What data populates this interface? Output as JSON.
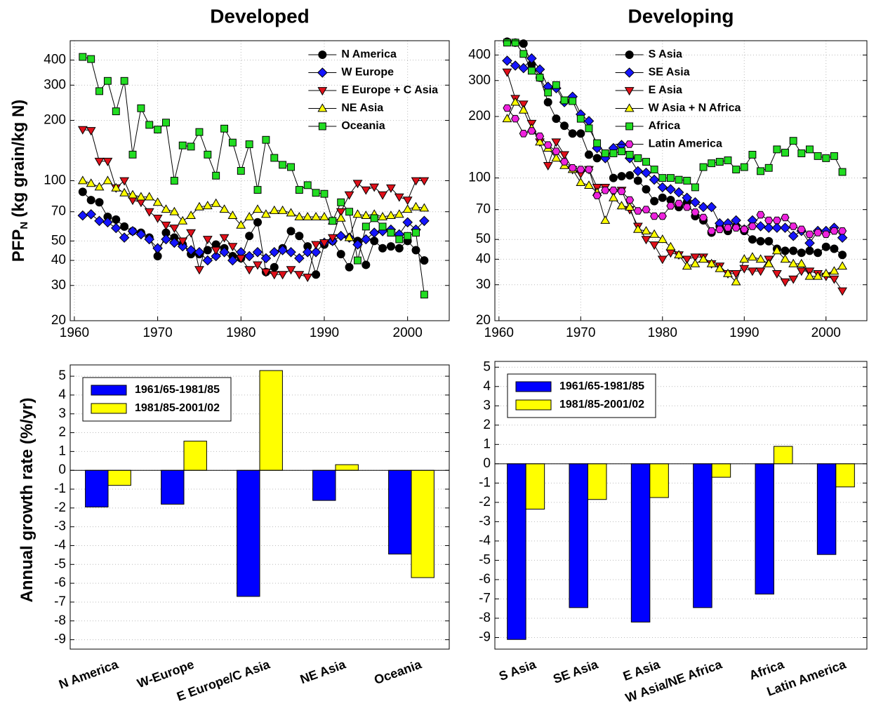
{
  "chart_data": [
    {
      "type": "line",
      "title": "Developed",
      "ylog": true,
      "ylabel": "PFP",
      "ylabel_sub": "N",
      "ylabel_unit": "(kg grain/kg N)",
      "xlim": [
        1959.5,
        2005
      ],
      "xticks": [
        1960,
        1970,
        1980,
        1990,
        2000
      ],
      "ylim": [
        20,
        500
      ],
      "yticks": [
        20,
        30,
        40,
        50,
        70,
        100,
        200,
        300,
        400
      ],
      "grid": true,
      "legend": "upper right",
      "line_color": "#000000",
      "x": [
        1961,
        1962,
        1963,
        1964,
        1965,
        1966,
        1967,
        1968,
        1969,
        1970,
        1971,
        1972,
        1973,
        1974,
        1975,
        1976,
        1977,
        1978,
        1979,
        1980,
        1981,
        1982,
        1983,
        1984,
        1985,
        1986,
        1987,
        1988,
        1989,
        1990,
        1991,
        1992,
        1993,
        1994,
        1995,
        1996,
        1997,
        1998,
        1999,
        2000,
        2001,
        2002
      ],
      "series": [
        {
          "name": "N America",
          "color": "#000000",
          "marker": "circle",
          "values": [
            88,
            80,
            78,
            66,
            64,
            59,
            56,
            55,
            52,
            42,
            55,
            52,
            48,
            43,
            43,
            45,
            48,
            46,
            42,
            41,
            53,
            62,
            35,
            37,
            46,
            56,
            53,
            47,
            34,
            48,
            50,
            43,
            37,
            50,
            38,
            50,
            46,
            47,
            46,
            50,
            45,
            40
          ]
        },
        {
          "name": "W Europe",
          "color": "#1515ff",
          "marker": "diamond",
          "values": [
            67,
            68,
            63,
            62,
            58,
            52,
            56,
            54,
            51,
            46,
            51,
            49,
            47,
            45,
            44,
            40,
            42,
            44,
            40,
            44,
            42,
            44,
            41,
            44,
            45,
            44,
            41,
            44,
            44,
            49,
            50,
            53,
            52,
            48,
            51,
            55,
            56,
            57,
            54,
            62,
            57,
            63
          ]
        },
        {
          "name": "E Europe + C Asia",
          "color": "#e0101a",
          "marker": "triangle-down",
          "values": [
            180,
            178,
            125,
            125,
            92,
            100,
            80,
            78,
            70,
            65,
            60,
            58,
            50,
            55,
            36,
            51,
            45,
            52,
            47,
            41,
            36,
            38,
            35,
            34,
            34,
            36,
            34,
            33,
            48,
            49,
            52,
            70,
            85,
            97,
            90,
            93,
            85,
            92,
            83,
            80,
            100,
            100
          ]
        },
        {
          "name": "NE Asia",
          "color": "#ffff00",
          "marker": "triangle-up",
          "values": [
            100,
            97,
            93,
            100,
            92,
            87,
            85,
            83,
            83,
            78,
            72,
            70,
            63,
            67,
            74,
            75,
            77,
            72,
            67,
            60,
            66,
            72,
            68,
            71,
            71,
            69,
            66,
            66,
            66,
            66,
            63,
            65,
            52,
            68,
            67,
            68,
            66,
            67,
            68,
            72,
            74,
            73
          ]
        },
        {
          "name": "Oceania",
          "color": "#22dd22",
          "marker": "square",
          "values": [
            415,
            405,
            280,
            315,
            222,
            315,
            135,
            230,
            190,
            180,
            195,
            100,
            150,
            148,
            175,
            135,
            106,
            182,
            155,
            112,
            152,
            90,
            160,
            130,
            120,
            117,
            90,
            95,
            87,
            86,
            63,
            78,
            70,
            40,
            59,
            65,
            59,
            55,
            51,
            53,
            55,
            27
          ]
        }
      ]
    },
    {
      "type": "line",
      "title": "Developing",
      "ylog": true,
      "xlim": [
        1959.5,
        2005
      ],
      "xticks": [
        1960,
        1970,
        1980,
        1990,
        2000
      ],
      "ylim": [
        20,
        470
      ],
      "yticks": [
        20,
        30,
        40,
        50,
        70,
        100,
        200,
        300,
        400
      ],
      "grid": true,
      "legend": "upper center",
      "line_color": "#000000",
      "x": [
        1961,
        1962,
        1963,
        1964,
        1965,
        1966,
        1967,
        1968,
        1969,
        1970,
        1971,
        1972,
        1973,
        1974,
        1975,
        1976,
        1977,
        1978,
        1979,
        1980,
        1981,
        1982,
        1983,
        1984,
        1985,
        1986,
        1987,
        1988,
        1989,
        1990,
        1991,
        1992,
        1993,
        1994,
        1995,
        1996,
        1997,
        1998,
        1999,
        2000,
        2001,
        2002
      ],
      "series": [
        {
          "name": "S Asia",
          "color": "#000000",
          "marker": "circle",
          "values": [
            465,
            460,
            455,
            360,
            310,
            235,
            195,
            180,
            165,
            165,
            130,
            125,
            130,
            100,
            102,
            103,
            97,
            88,
            77,
            80,
            78,
            72,
            76,
            65,
            62,
            54,
            58,
            55,
            58,
            55,
            50,
            49,
            49,
            45,
            44,
            44,
            43,
            44,
            43,
            46,
            45,
            42
          ]
        },
        {
          "name": "SE Asia",
          "color": "#1515ff",
          "marker": "diamond",
          "values": [
            375,
            355,
            345,
            385,
            340,
            280,
            275,
            235,
            250,
            205,
            190,
            140,
            125,
            140,
            145,
            125,
            108,
            106,
            98,
            90,
            88,
            85,
            80,
            76,
            72,
            72,
            60,
            60,
            62,
            56,
            62,
            58,
            57,
            57,
            57,
            52,
            55,
            48,
            55,
            55,
            57,
            51
          ]
        },
        {
          "name": "E Asia",
          "color": "#e0101a",
          "marker": "triangle-down",
          "values": [
            330,
            245,
            230,
            185,
            150,
            115,
            150,
            130,
            110,
            105,
            110,
            90,
            90,
            85,
            87,
            70,
            58,
            50,
            47,
            40,
            43,
            42,
            40,
            41,
            41,
            38,
            37,
            34,
            34,
            36,
            35,
            35,
            40,
            34,
            31,
            32,
            35,
            35,
            34,
            33,
            32,
            28
          ]
        },
        {
          "name": "W Asia + N Africa",
          "color": "#ffff00",
          "marker": "triangle-up",
          "values": [
            195,
            235,
            215,
            175,
            150,
            140,
            125,
            115,
            110,
            95,
            92,
            85,
            62,
            80,
            73,
            72,
            56,
            55,
            53,
            50,
            46,
            42,
            37,
            38,
            40,
            38,
            36,
            34,
            31,
            40,
            41,
            40,
            38,
            44,
            40,
            38,
            38,
            33,
            33,
            34,
            35,
            37
          ]
        },
        {
          "name": "Africa",
          "color": "#22dd22",
          "marker": "square",
          "values": [
            460,
            460,
            405,
            335,
            310,
            262,
            285,
            240,
            238,
            195,
            175,
            148,
            132,
            132,
            135,
            130,
            125,
            120,
            110,
            100,
            100,
            98,
            97,
            90,
            113,
            118,
            120,
            122,
            110,
            113,
            130,
            108,
            112,
            138,
            133,
            152,
            132,
            138,
            128,
            125,
            128,
            107
          ]
        },
        {
          "name": "Latin America",
          "color": "#ee22dd",
          "marker": "hexagon",
          "values": [
            220,
            195,
            165,
            170,
            160,
            145,
            135,
            120,
            112,
            110,
            110,
            82,
            87,
            87,
            86,
            78,
            69,
            70,
            65,
            65,
            73,
            75,
            72,
            68,
            64,
            55,
            56,
            57,
            57,
            56,
            58,
            66,
            62,
            62,
            64,
            58,
            56,
            53,
            54,
            53,
            55,
            55
          ]
        }
      ]
    },
    {
      "type": "bar",
      "ylabel": "Annual growth rate (%/yr)",
      "ylim": [
        -9.5,
        5.6
      ],
      "yticks": [
        -9,
        -8,
        -7,
        -6,
        -5,
        -4,
        -3,
        -2,
        -1,
        0,
        1,
        2,
        3,
        4,
        5
      ],
      "grid": true,
      "legend": "upper left",
      "categories": [
        "N America",
        "W-Europe",
        "E Europe/C Asia",
        "NE Asia",
        "Oceania"
      ],
      "series": [
        {
          "name": "1961/65-1981/85",
          "color": "#0000ff",
          "values": [
            -1.95,
            -1.8,
            -6.7,
            -1.6,
            -4.45
          ]
        },
        {
          "name": "1981/85-2001/02",
          "color": "#ffff00",
          "values": [
            -0.8,
            1.55,
            5.3,
            0.3,
            -5.7
          ]
        }
      ]
    },
    {
      "type": "bar",
      "ylim": [
        -9.6,
        5.3
      ],
      "yticks": [
        -9,
        -8,
        -7,
        -6,
        -5,
        -4,
        -3,
        -2,
        -1,
        0,
        1,
        2,
        3,
        4,
        5
      ],
      "grid": true,
      "legend": "upper left",
      "categories": [
        "S Asia",
        "SE Asia",
        "E Asia",
        "W Asia/NE Africa",
        "Africa",
        "Latin America"
      ],
      "series": [
        {
          "name": "1961/65-1981/85",
          "color": "#0000ff",
          "values": [
            -9.1,
            -7.45,
            -8.2,
            -7.45,
            -6.75,
            -4.7
          ]
        },
        {
          "name": "1981/85-2001/02",
          "color": "#ffff00",
          "values": [
            -2.35,
            -1.85,
            -1.75,
            -0.7,
            0.9,
            -1.2
          ]
        }
      ]
    }
  ]
}
